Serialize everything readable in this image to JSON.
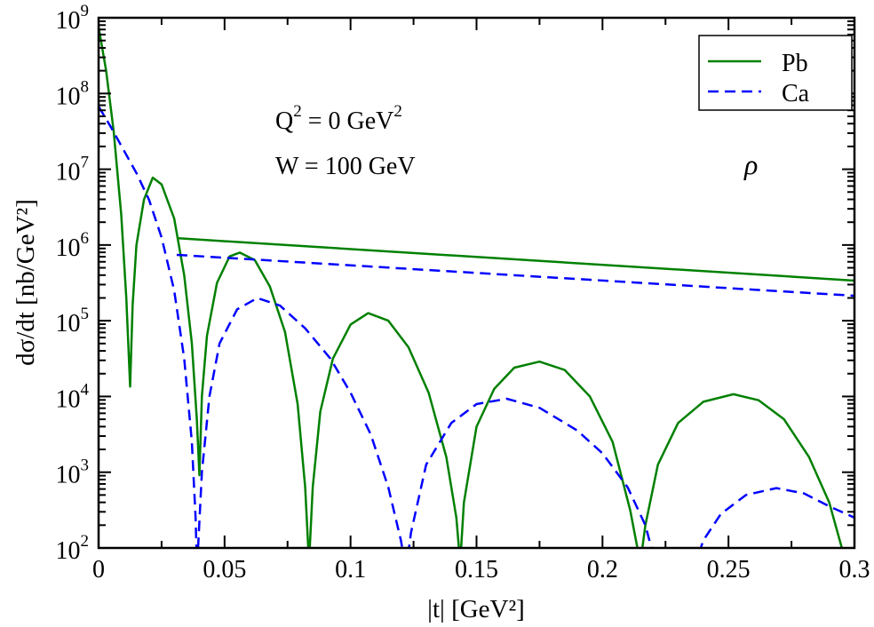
{
  "chart_data": {
    "type": "line",
    "title": "",
    "xlabel": "|t| [GeV²]",
    "ylabel": "dσ/dt [nb/GeV²]",
    "xlim": [
      0,
      0.3
    ],
    "ylim": [
      100,
      1000000000
    ],
    "yscale": "log",
    "grid": false,
    "legend": "top-right",
    "xticks": [
      "0",
      "0.05",
      "0.1",
      "0.15",
      "0.2",
      "0.25",
      "0.3"
    ],
    "xtick_values": [
      0,
      0.05,
      0.1,
      0.15,
      0.2,
      0.25,
      0.3
    ],
    "yticks": [
      {
        "base": "10",
        "exp": "2"
      },
      {
        "base": "10",
        "exp": "3"
      },
      {
        "base": "10",
        "exp": "4"
      },
      {
        "base": "10",
        "exp": "5"
      },
      {
        "base": "10",
        "exp": "6"
      },
      {
        "base": "10",
        "exp": "7"
      },
      {
        "base": "10",
        "exp": "8"
      },
      {
        "base": "10",
        "exp": "9"
      }
    ],
    "annotations": {
      "q2": {
        "text": "Q",
        "sup": "2",
        "rest": " = 0 GeV",
        "sup2": "2"
      },
      "w": "W = 100 GeV",
      "meson": "ρ"
    },
    "series": [
      {
        "name": "Pb",
        "color": "#008000",
        "style": "solid",
        "log10_points": [
          [
            0,
            8.88
          ],
          [
            0.003,
            8.3
          ],
          [
            0.006,
            7.5
          ],
          [
            0.009,
            6.4
          ],
          [
            0.011,
            5.3
          ],
          [
            0.0125,
            4.13
          ],
          [
            0.0135,
            5.2
          ],
          [
            0.015,
            6.0
          ],
          [
            0.018,
            6.6
          ],
          [
            0.0215,
            6.89
          ],
          [
            0.025,
            6.8
          ],
          [
            0.03,
            6.35
          ],
          [
            0.034,
            5.6
          ],
          [
            0.037,
            4.7
          ],
          [
            0.039,
            3.7
          ],
          [
            0.04,
            2.96
          ],
          [
            0.041,
            4.0
          ],
          [
            0.043,
            4.8
          ],
          [
            0.047,
            5.5
          ],
          [
            0.052,
            5.85
          ],
          [
            0.056,
            5.9
          ],
          [
            0.062,
            5.8
          ],
          [
            0.068,
            5.45
          ],
          [
            0.074,
            4.85
          ],
          [
            0.079,
            3.9
          ],
          [
            0.082,
            2.8
          ],
          [
            0.0835,
            1.8
          ],
          [
            0.085,
            2.8
          ],
          [
            0.088,
            3.8
          ],
          [
            0.093,
            4.5
          ],
          [
            0.1,
            4.95
          ],
          [
            0.107,
            5.1
          ],
          [
            0.115,
            5.0
          ],
          [
            0.123,
            4.65
          ],
          [
            0.131,
            4.05
          ],
          [
            0.138,
            3.2
          ],
          [
            0.142,
            2.4
          ],
          [
            0.1435,
            1.8
          ],
          [
            0.145,
            2.6
          ],
          [
            0.15,
            3.6
          ],
          [
            0.157,
            4.1
          ],
          [
            0.165,
            4.38
          ],
          [
            0.175,
            4.46
          ],
          [
            0.185,
            4.35
          ],
          [
            0.195,
            4.0
          ],
          [
            0.204,
            3.4
          ],
          [
            0.211,
            2.5
          ],
          [
            0.215,
            1.8
          ],
          [
            0.217,
            2.3
          ],
          [
            0.222,
            3.1
          ],
          [
            0.23,
            3.65
          ],
          [
            0.24,
            3.93
          ],
          [
            0.252,
            4.03
          ],
          [
            0.262,
            3.95
          ],
          [
            0.272,
            3.7
          ],
          [
            0.282,
            3.2
          ],
          [
            0.29,
            2.6
          ],
          [
            0.295,
            2.0
          ],
          [
            0.297,
            1.8
          ]
        ],
        "envelope_log10": [
          [
            0.031,
            6.09
          ],
          [
            0.3,
            5.53
          ]
        ]
      },
      {
        "name": "Ca",
        "color": "#0000ff",
        "style": "dashed",
        "log10_points": [
          [
            0,
            7.83
          ],
          [
            0.005,
            7.55
          ],
          [
            0.01,
            7.25
          ],
          [
            0.015,
            6.95
          ],
          [
            0.02,
            6.6
          ],
          [
            0.025,
            6.1
          ],
          [
            0.03,
            5.4
          ],
          [
            0.034,
            4.5
          ],
          [
            0.037,
            3.4
          ],
          [
            0.0385,
            2.4
          ],
          [
            0.039,
            1.8
          ],
          [
            0.0395,
            2.0
          ],
          [
            0.041,
            3.0
          ],
          [
            0.044,
            4.0
          ],
          [
            0.048,
            4.7
          ],
          [
            0.055,
            5.15
          ],
          [
            0.063,
            5.3
          ],
          [
            0.072,
            5.2
          ],
          [
            0.082,
            4.9
          ],
          [
            0.092,
            4.5
          ],
          [
            0.1,
            4.05
          ],
          [
            0.108,
            3.5
          ],
          [
            0.115,
            2.8
          ],
          [
            0.12,
            2.1
          ],
          [
            0.122,
            1.7
          ],
          [
            0.124,
            2.2
          ],
          [
            0.13,
            3.1
          ],
          [
            0.14,
            3.65
          ],
          [
            0.15,
            3.9
          ],
          [
            0.162,
            3.97
          ],
          [
            0.175,
            3.85
          ],
          [
            0.19,
            3.55
          ],
          [
            0.2,
            3.25
          ],
          [
            0.21,
            2.8
          ],
          [
            0.217,
            2.3
          ],
          [
            0.221,
            1.8
          ],
          [
            0.237,
            1.8
          ],
          [
            0.24,
            2.1
          ],
          [
            0.247,
            2.45
          ],
          [
            0.257,
            2.7
          ],
          [
            0.269,
            2.79
          ],
          [
            0.28,
            2.72
          ],
          [
            0.29,
            2.55
          ],
          [
            0.3,
            2.4
          ]
        ],
        "envelope_log10": [
          [
            0.031,
            5.87
          ],
          [
            0.3,
            5.33
          ]
        ]
      }
    ]
  }
}
